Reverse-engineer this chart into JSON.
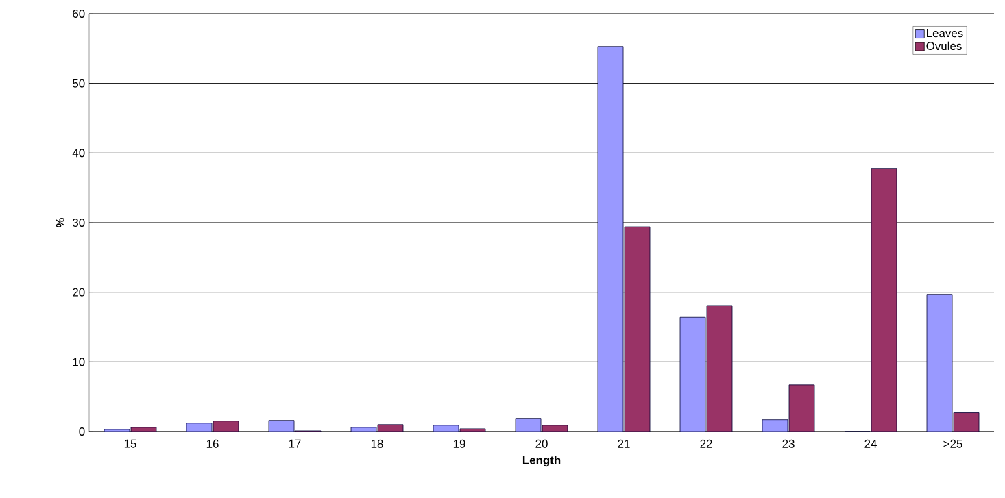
{
  "chart_data": {
    "type": "bar",
    "xlabel": "Length",
    "ylabel": "%",
    "categories": [
      "15",
      "16",
      "17",
      "18",
      "19",
      "20",
      "21",
      "22",
      "23",
      "24",
      ">25"
    ],
    "series": [
      {
        "name": "Leaves",
        "color": "#9999ff",
        "values": [
          0.3,
          1.2,
          1.6,
          0.6,
          0.9,
          1.9,
          55.3,
          16.4,
          1.7,
          0,
          19.7
        ]
      },
      {
        "name": "Ovules",
        "color": "#993366",
        "values": [
          0.6,
          1.5,
          0.1,
          1.0,
          0.4,
          0.9,
          29.4,
          18.1,
          6.7,
          37.8,
          2.7
        ]
      }
    ],
    "ylim": [
      0,
      60
    ],
    "yticks": [
      0,
      10,
      20,
      30,
      40,
      50,
      60
    ],
    "grid": "y",
    "legend": "top right"
  }
}
